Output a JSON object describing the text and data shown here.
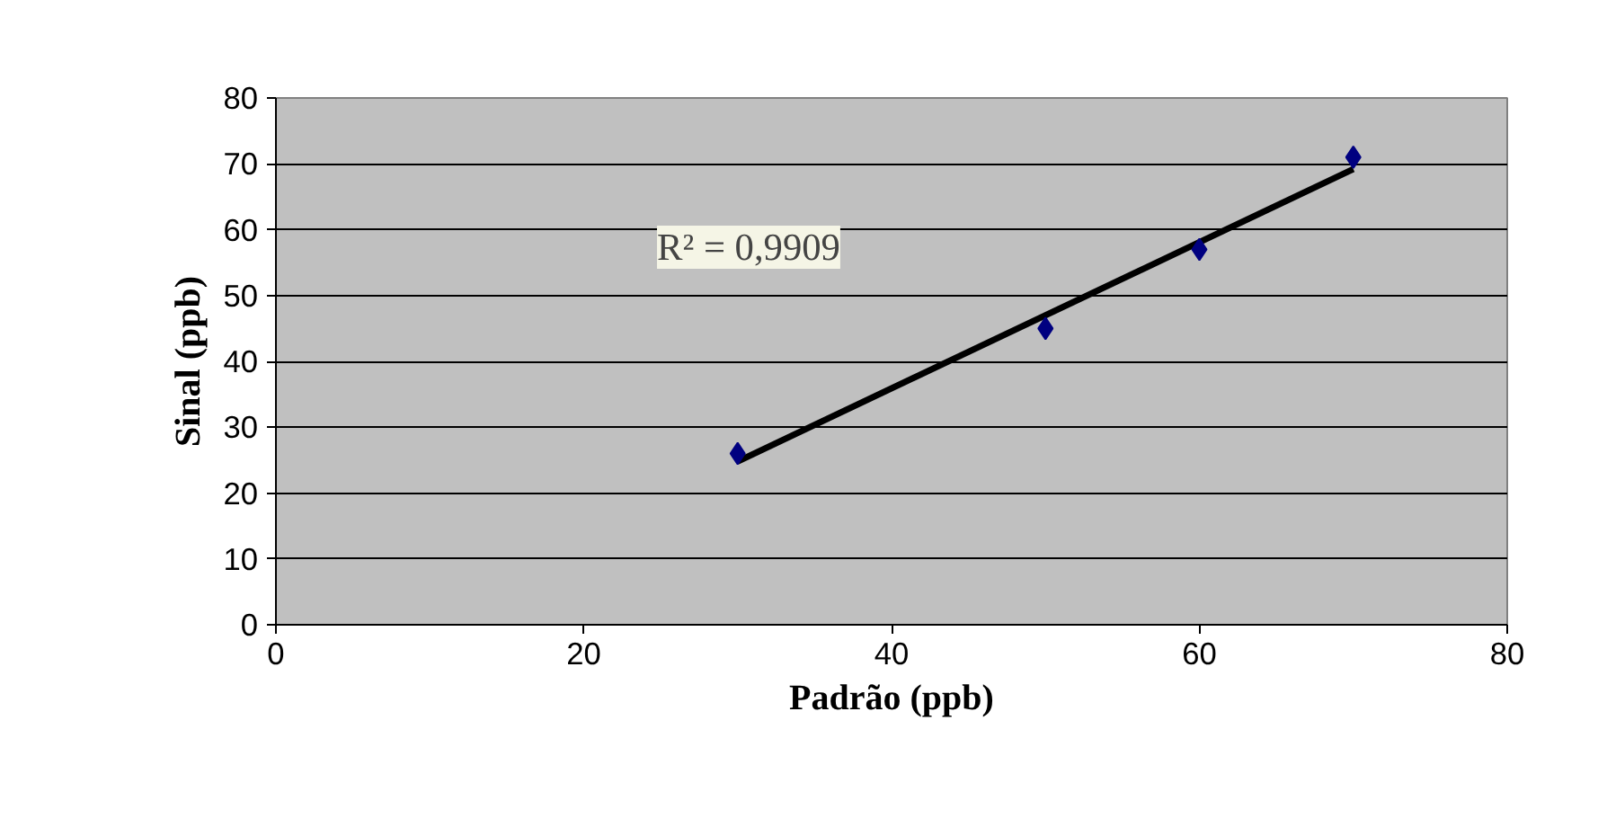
{
  "chart_data": {
    "type": "scatter",
    "xlabel": "Padrão (ppb)",
    "ylabel": "Sinal (ppb)",
    "x": [
      30,
      50,
      60,
      70
    ],
    "series": [
      {
        "color": "#000080",
        "values": [
          26,
          45,
          57,
          71
        ],
        "marker": "diamond"
      },
      {
        "type": "line",
        "color": "#000000",
        "x": [
          30,
          70
        ],
        "values": [
          24.8,
          69.2
        ],
        "marker": "none",
        "line_style": "solid"
      }
    ],
    "annotations": [
      "R² = 0,9909"
    ],
    "xlim": [
      0,
      80
    ],
    "xticks": [
      0,
      20,
      40,
      60,
      80
    ],
    "ylim": [
      0,
      80
    ],
    "yticks": [
      0,
      10,
      20,
      30,
      40,
      50,
      60,
      70,
      80
    ],
    "grid": "y"
  }
}
